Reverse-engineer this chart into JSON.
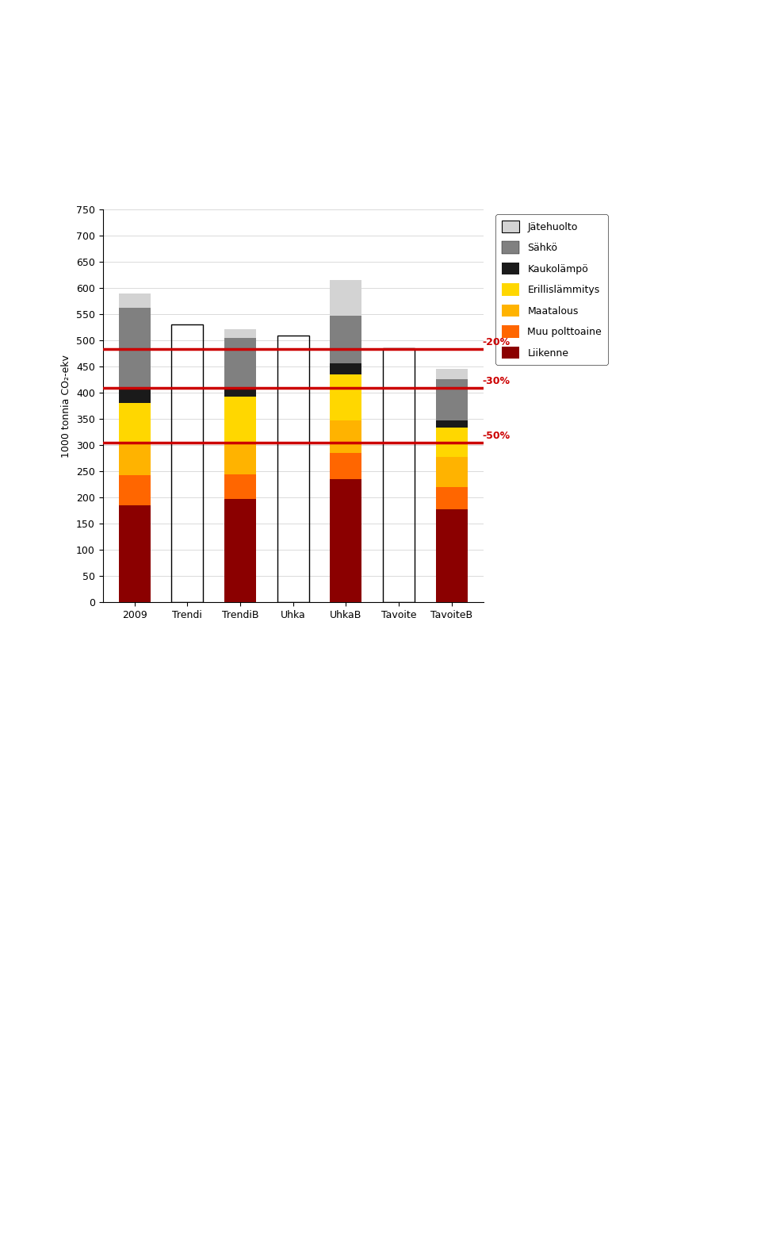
{
  "categories": [
    "2009",
    "Trendi",
    "TrendiB",
    "Uhka",
    "UhkaB",
    "Tavoite",
    "TavoiteB"
  ],
  "series": {
    "Liikenne": [
      185,
      0,
      197,
      0,
      235,
      0,
      178
    ],
    "Muu polttoaine": [
      58,
      0,
      47,
      0,
      50,
      0,
      42
    ],
    "Maatalous": [
      62,
      0,
      58,
      0,
      62,
      0,
      58
    ],
    "Erillislämmitys": [
      75,
      0,
      90,
      0,
      88,
      0,
      55
    ],
    "Kaukolämpö": [
      30,
      0,
      18,
      0,
      22,
      0,
      15
    ],
    "Sähkö": [
      152,
      0,
      95,
      0,
      90,
      0,
      78
    ],
    "Jätehuolto": [
      28,
      0,
      17,
      0,
      68,
      0,
      20
    ]
  },
  "trendi_total": 530,
  "uhka_total": 510,
  "tavoite_total": 485,
  "outline_bars": {
    "Trendi": 530,
    "Uhka": 510,
    "Tavoite": 485
  },
  "colors": {
    "Liikenne": "#8B0000",
    "Muu polttoaine": "#FF6600",
    "Maatalous": "#FFB300",
    "Erillislämmitys": "#FFD700",
    "Kaukolämpö": "#1A1A1A",
    "Sähkö": "#808080",
    "Jätehuolto": "#D3D3D3"
  },
  "hlines": [
    {
      "y": 484,
      "label": "-20%"
    },
    {
      "y": 410,
      "label": "-30%"
    },
    {
      "y": 305,
      "label": "-50%"
    }
  ],
  "ylabel": "1000 tonnia CO₂-ekv",
  "ylim": [
    0,
    750
  ],
  "yticks": [
    0,
    50,
    100,
    150,
    200,
    250,
    300,
    350,
    400,
    450,
    500,
    550,
    600,
    650,
    700,
    750
  ],
  "bar_width": 0.6,
  "hline_color": "#CC0000",
  "legend_items": [
    "Jätehuolto",
    "Sähkö",
    "Kaukolämpö",
    "Erillislämmitys",
    "Maatalous",
    "Muu polttoaine",
    "Liikenne"
  ]
}
